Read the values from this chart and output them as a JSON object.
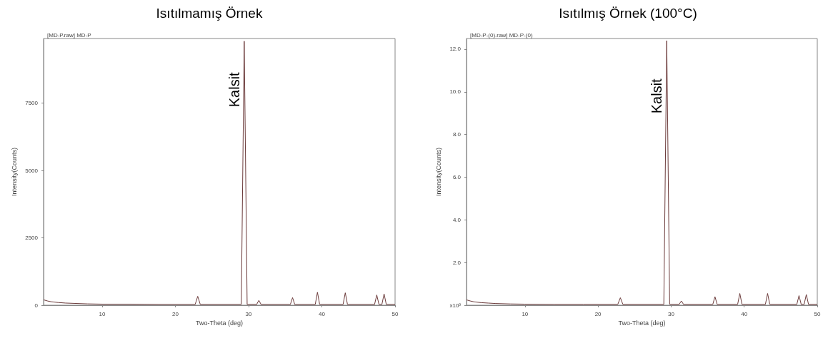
{
  "chart_data": [
    {
      "type": "line",
      "title": "Isıtılmamış Örnek",
      "subtitle": "[MD-P.raw] MD-P",
      "xlabel": "Two-Theta (deg)",
      "ylabel": "Intensity(Counts)",
      "xlim": [
        2,
        50
      ],
      "xticks": [
        10,
        20,
        30,
        40,
        50
      ],
      "ylim": [
        0,
        9900
      ],
      "yticks": [
        0,
        2500,
        5000,
        7500
      ],
      "grid": false,
      "marker": "none",
      "line_style": "solid",
      "annotations": [
        {
          "text": "Kalsit",
          "x": 29.4,
          "y": 8000
        }
      ],
      "series": [
        {
          "color": "#6b3a3a",
          "x": [
            2,
            2.5,
            3,
            4,
            5,
            6,
            8,
            10,
            14,
            18,
            22.7,
            23.05,
            23.4,
            29.0,
            29.4,
            29.8,
            31.1,
            31.4,
            31.7,
            35.7,
            36.0,
            36.3,
            39.1,
            39.4,
            39.7,
            42.9,
            43.2,
            43.5,
            47.2,
            47.5,
            47.8,
            48.2,
            48.5,
            48.8,
            50
          ],
          "values": [
            200,
            160,
            130,
            100,
            80,
            70,
            50,
            40,
            40,
            30,
            30,
            330,
            30,
            30,
            9800,
            30,
            30,
            180,
            30,
            30,
            280,
            30,
            30,
            480,
            30,
            30,
            460,
            30,
            30,
            380,
            30,
            30,
            420,
            30,
            30
          ]
        }
      ]
    },
    {
      "type": "line",
      "title": "Isıtılmış Örnek (100°C)",
      "subtitle": "[MD-P-(0).raw] MD-P-(0)",
      "xlabel": "Two-Theta (deg)",
      "ylabel": "Intensity(Counts)",
      "xlim": [
        2,
        50
      ],
      "xticks": [
        10,
        20,
        30,
        40,
        50
      ],
      "ylim": [
        0,
        12.5
      ],
      "yticks": [
        {
          "value": 0,
          "label": "x10³"
        },
        {
          "value": 2,
          "label": "2.0"
        },
        {
          "value": 4,
          "label": "4.0"
        },
        {
          "value": 6,
          "label": "6.0"
        },
        {
          "value": 8,
          "label": "8.0"
        },
        {
          "value": 10,
          "label": "10.0"
        },
        {
          "value": 12,
          "label": "12.0"
        }
      ],
      "grid": false,
      "marker": "none",
      "line_style": "solid",
      "annotations": [
        {
          "text": "Kalsit",
          "x": 29.4,
          "y": 9.8
        }
      ],
      "series": [
        {
          "color": "#6b3a3a",
          "x": [
            2,
            2.5,
            3,
            4,
            5,
            6,
            8,
            10,
            14,
            18,
            22.7,
            23.05,
            23.4,
            29.0,
            29.4,
            29.8,
            31.1,
            31.4,
            31.7,
            35.7,
            36.0,
            36.3,
            39.1,
            39.4,
            39.7,
            42.9,
            43.2,
            43.5,
            47.2,
            47.5,
            47.8,
            48.2,
            48.5,
            48.8,
            50
          ],
          "values": [
            0.25,
            0.2,
            0.16,
            0.12,
            0.1,
            0.08,
            0.06,
            0.05,
            0.04,
            0.04,
            0.04,
            0.35,
            0.04,
            0.04,
            12.4,
            0.04,
            0.04,
            0.2,
            0.04,
            0.04,
            0.4,
            0.04,
            0.04,
            0.55,
            0.04,
            0.04,
            0.55,
            0.04,
            0.04,
            0.45,
            0.04,
            0.04,
            0.5,
            0.04,
            0.04
          ]
        }
      ]
    }
  ]
}
